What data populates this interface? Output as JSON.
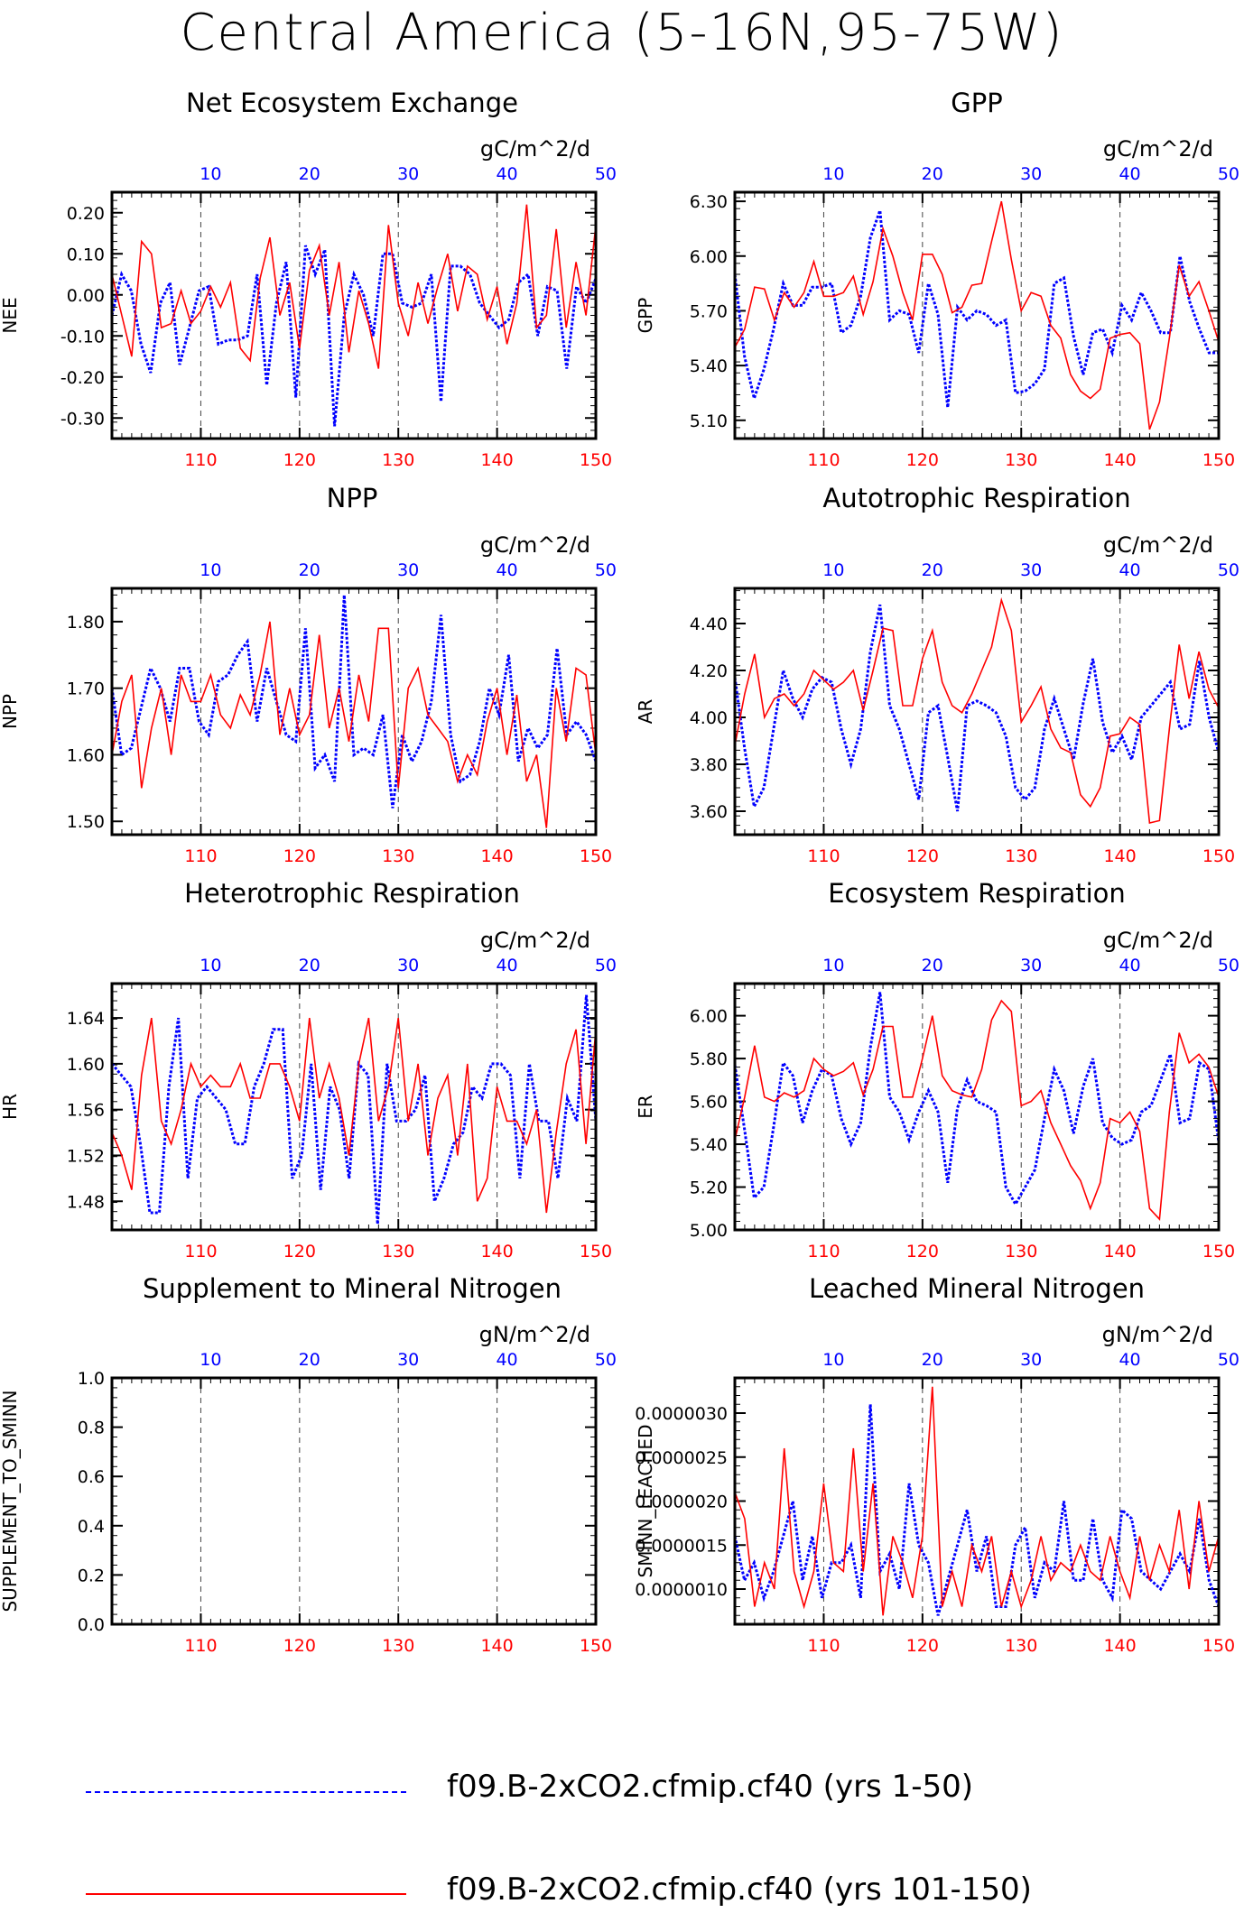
{
  "title": "Central America (5-16N,95-75W)",
  "legend": [
    {
      "label": "f09.B-2xCO2.cfmip.cf40 (yrs 1-50)",
      "color": "#0000ff",
      "style": "dashed"
    },
    {
      "label": "f09.B-2xCO2.cfmip.cf40 (yrs 101-150)",
      "color": "#ff0000",
      "style": "solid"
    }
  ],
  "colors": {
    "top_axis": "#0000ff",
    "bottom_axis": "#ff0000",
    "series_a": "#0000ff",
    "series_b": "#ff0000"
  },
  "chart_data": [
    {
      "type": "line",
      "title": "Net Ecosystem Exchange",
      "units": "gC/m^2/d",
      "ylabel": "NEE",
      "x_bottom_ticks": [
        110,
        120,
        130,
        140,
        150
      ],
      "x_top_ticks": [
        10,
        20,
        30,
        40,
        50
      ],
      "ylim": [
        -0.35,
        0.25
      ],
      "yticks": [
        0.2,
        0.1,
        0,
        -0.1,
        -0.2,
        -0.3
      ],
      "ytick_labels": [
        "0.20",
        "0.10",
        "0.00",
        "-0.10",
        "-0.20",
        "-0.30"
      ],
      "series": [
        {
          "name": "f09.B-2xCO2.cfmip.cf40 (yrs 1-50)",
          "values": [
            -0.05,
            0.05,
            0.01,
            -0.12,
            -0.19,
            -0.02,
            0.03,
            -0.17,
            -0.08,
            0.01,
            0.02,
            -0.12,
            -0.11,
            -0.11,
            -0.1,
            0.05,
            -0.22,
            -0.02,
            0.08,
            -0.25,
            0.12,
            0.05,
            0.11,
            -0.32,
            -0.05,
            0.05,
            0.0,
            -0.1,
            0.1,
            0.1,
            -0.02,
            -0.03,
            -0.02,
            0.05,
            -0.26,
            0.07,
            0.07,
            0.05,
            -0.02,
            -0.05,
            -0.08,
            -0.06,
            0.03,
            0.05,
            -0.1,
            0.02,
            0.01,
            -0.18,
            0.02,
            -0.02,
            0.04
          ]
        },
        {
          "name": "f09.B-2xCO2.cfmip.cf40 (yrs 101-150)",
          "values": [
            0.05,
            -0.05,
            -0.15,
            0.13,
            0.1,
            -0.08,
            -0.07,
            0.01,
            -0.07,
            -0.04,
            0.02,
            -0.03,
            0.03,
            -0.13,
            -0.16,
            0.04,
            0.14,
            -0.05,
            0.03,
            -0.13,
            0.06,
            0.12,
            -0.05,
            0.08,
            -0.14,
            0.01,
            -0.07,
            -0.18,
            0.17,
            -0.02,
            -0.1,
            0.03,
            -0.07,
            0.02,
            0.1,
            -0.04,
            0.07,
            0.05,
            -0.06,
            0.02,
            -0.12,
            -0.02,
            0.22,
            -0.08,
            -0.05,
            0.16,
            -0.08,
            0.08,
            -0.05,
            0.17
          ]
        }
      ]
    },
    {
      "type": "line",
      "title": "GPP",
      "units": "gC/m^2/d",
      "ylabel": "GPP",
      "x_bottom_ticks": [
        110,
        120,
        130,
        140,
        150
      ],
      "x_top_ticks": [
        10,
        20,
        30,
        40,
        50
      ],
      "ylim": [
        5.0,
        6.35
      ],
      "yticks": [
        6.3,
        6.0,
        5.7,
        5.4,
        5.1
      ],
      "ytick_labels": [
        "6.30",
        "6.00",
        "5.70",
        "5.40",
        "5.10"
      ],
      "series": [
        {
          "name": "f09.B-2xCO2.cfmip.cf40 (yrs 1-50)",
          "values": [
            5.9,
            5.45,
            5.22,
            5.38,
            5.6,
            5.85,
            5.73,
            5.73,
            5.83,
            5.83,
            5.85,
            5.58,
            5.62,
            5.78,
            6.1,
            6.25,
            5.65,
            5.7,
            5.68,
            5.47,
            5.85,
            5.68,
            5.17,
            5.72,
            5.65,
            5.7,
            5.68,
            5.62,
            5.65,
            5.25,
            5.26,
            5.3,
            5.38,
            5.85,
            5.88,
            5.56,
            5.35,
            5.58,
            5.6,
            5.47,
            5.73,
            5.65,
            5.8,
            5.7,
            5.58,
            5.58,
            6.0,
            5.75,
            5.6,
            5.47,
            5.47
          ]
        },
        {
          "name": "f09.B-2xCO2.cfmip.cf40 (yrs 101-150)",
          "values": [
            5.5,
            5.6,
            5.83,
            5.82,
            5.65,
            5.8,
            5.72,
            5.8,
            5.97,
            5.78,
            5.78,
            5.8,
            5.89,
            5.68,
            5.86,
            6.15,
            6.0,
            5.8,
            5.65,
            6.01,
            6.01,
            5.9,
            5.69,
            5.72,
            5.84,
            5.85,
            6.08,
            6.3,
            5.98,
            5.7,
            5.8,
            5.78,
            5.62,
            5.55,
            5.35,
            5.26,
            5.22,
            5.27,
            5.55,
            5.57,
            5.58,
            5.52,
            5.05,
            5.2,
            5.55,
            5.95,
            5.78,
            5.86,
            5.7,
            5.53
          ]
        }
      ]
    },
    {
      "type": "line",
      "title": "NPP",
      "units": "gC/m^2/d",
      "ylabel": "NPP",
      "x_bottom_ticks": [
        110,
        120,
        130,
        140,
        150
      ],
      "x_top_ticks": [
        10,
        20,
        30,
        40,
        50
      ],
      "ylim": [
        1.48,
        1.85
      ],
      "yticks": [
        1.8,
        1.7,
        1.6,
        1.5
      ],
      "ytick_labels": [
        "1.80",
        "1.70",
        "1.60",
        "1.50"
      ],
      "series": [
        {
          "name": "f09.B-2xCO2.cfmip.cf40 (yrs 1-50)",
          "values": [
            1.7,
            1.6,
            1.61,
            1.67,
            1.73,
            1.7,
            1.65,
            1.73,
            1.73,
            1.65,
            1.63,
            1.71,
            1.72,
            1.75,
            1.77,
            1.65,
            1.73,
            1.68,
            1.63,
            1.62,
            1.79,
            1.58,
            1.6,
            1.56,
            1.84,
            1.6,
            1.61,
            1.6,
            1.66,
            1.52,
            1.63,
            1.59,
            1.62,
            1.68,
            1.81,
            1.63,
            1.56,
            1.57,
            1.62,
            1.7,
            1.66,
            1.75,
            1.59,
            1.64,
            1.61,
            1.63,
            1.76,
            1.63,
            1.65,
            1.63,
            1.59
          ]
        },
        {
          "name": "f09.B-2xCO2.cfmip.cf40 (yrs 101-150)",
          "values": [
            1.6,
            1.68,
            1.72,
            1.55,
            1.64,
            1.7,
            1.6,
            1.72,
            1.68,
            1.68,
            1.72,
            1.66,
            1.64,
            1.69,
            1.66,
            1.72,
            1.8,
            1.63,
            1.7,
            1.63,
            1.66,
            1.78,
            1.64,
            1.7,
            1.62,
            1.72,
            1.65,
            1.79,
            1.79,
            1.55,
            1.7,
            1.73,
            1.66,
            1.64,
            1.62,
            1.56,
            1.6,
            1.57,
            1.65,
            1.7,
            1.6,
            1.69,
            1.56,
            1.6,
            1.49,
            1.7,
            1.62,
            1.73,
            1.72,
            1.6
          ]
        }
      ]
    },
    {
      "type": "line",
      "title": "Autotrophic Respiration",
      "units": "gC/m^2/d",
      "ylabel": "AR",
      "x_bottom_ticks": [
        110,
        120,
        130,
        140,
        150
      ],
      "x_top_ticks": [
        10,
        20,
        30,
        40,
        50
      ],
      "ylim": [
        3.5,
        4.55
      ],
      "yticks": [
        4.4,
        4.2,
        4.0,
        3.8,
        3.6
      ],
      "ytick_labels": [
        "4.40",
        "4.20",
        "4.00",
        "3.80",
        "3.60"
      ],
      "series": [
        {
          "name": "f09.B-2xCO2.cfmip.cf40 (yrs 1-50)",
          "values": [
            4.17,
            3.87,
            3.62,
            3.7,
            3.95,
            4.2,
            4.08,
            4.0,
            4.12,
            4.17,
            4.15,
            3.95,
            3.8,
            3.95,
            4.28,
            4.48,
            4.05,
            3.95,
            3.8,
            3.65,
            4.02,
            4.05,
            3.83,
            3.6,
            4.05,
            4.07,
            4.05,
            4.02,
            3.92,
            3.7,
            3.65,
            3.7,
            3.95,
            4.08,
            3.95,
            3.82,
            4.06,
            4.25,
            3.98,
            3.85,
            3.92,
            3.82,
            4.0,
            4.05,
            4.1,
            4.15,
            3.95,
            3.97,
            4.24,
            4.0,
            3.85
          ]
        },
        {
          "name": "f09.B-2xCO2.cfmip.cf40 (yrs 101-150)",
          "values": [
            3.88,
            4.1,
            4.27,
            4.0,
            4.08,
            4.1,
            4.05,
            4.1,
            4.2,
            4.16,
            4.12,
            4.15,
            4.2,
            4.03,
            4.2,
            4.38,
            4.37,
            4.05,
            4.05,
            4.25,
            4.37,
            4.15,
            4.05,
            4.02,
            4.1,
            4.2,
            4.3,
            4.5,
            4.37,
            3.98,
            4.05,
            4.13,
            3.95,
            3.87,
            3.85,
            3.67,
            3.62,
            3.7,
            3.92,
            3.93,
            4.0,
            3.97,
            3.55,
            3.56,
            3.95,
            4.31,
            4.08,
            4.28,
            4.12,
            4.04
          ]
        }
      ]
    },
    {
      "type": "line",
      "title": "Heterotrophic Respiration",
      "units": "gC/m^2/d",
      "ylabel": "HR",
      "x_bottom_ticks": [
        110,
        120,
        130,
        140,
        150
      ],
      "x_top_ticks": [
        10,
        20,
        30,
        40,
        50
      ],
      "ylim": [
        1.455,
        1.67
      ],
      "yticks": [
        1.64,
        1.6,
        1.56,
        1.52,
        1.48
      ],
      "ytick_labels": [
        "1.64",
        "1.60",
        "1.56",
        "1.52",
        "1.48"
      ],
      "series": [
        {
          "name": "f09.B-2xCO2.cfmip.cf40 (yrs 1-50)",
          "values": [
            1.6,
            1.59,
            1.58,
            1.53,
            1.47,
            1.47,
            1.58,
            1.64,
            1.5,
            1.57,
            1.58,
            1.57,
            1.56,
            1.53,
            1.53,
            1.58,
            1.6,
            1.63,
            1.63,
            1.5,
            1.52,
            1.6,
            1.49,
            1.58,
            1.56,
            1.5,
            1.6,
            1.59,
            1.46,
            1.6,
            1.55,
            1.55,
            1.56,
            1.59,
            1.48,
            1.5,
            1.53,
            1.54,
            1.58,
            1.57,
            1.6,
            1.6,
            1.59,
            1.5,
            1.6,
            1.55,
            1.55,
            1.5,
            1.57,
            1.55,
            1.66,
            1.55
          ]
        },
        {
          "name": "f09.B-2xCO2.cfmip.cf40 (yrs 101-150)",
          "values": [
            1.54,
            1.52,
            1.49,
            1.59,
            1.64,
            1.55,
            1.53,
            1.56,
            1.6,
            1.58,
            1.59,
            1.58,
            1.58,
            1.6,
            1.57,
            1.57,
            1.6,
            1.6,
            1.58,
            1.55,
            1.64,
            1.57,
            1.6,
            1.57,
            1.52,
            1.6,
            1.64,
            1.55,
            1.58,
            1.64,
            1.55,
            1.6,
            1.52,
            1.57,
            1.59,
            1.52,
            1.6,
            1.48,
            1.5,
            1.58,
            1.55,
            1.55,
            1.53,
            1.56,
            1.47,
            1.54,
            1.6,
            1.63,
            1.53,
            1.63
          ]
        }
      ]
    },
    {
      "type": "line",
      "title": "Ecosystem Respiration",
      "units": "gC/m^2/d",
      "ylabel": "ER",
      "x_bottom_ticks": [
        110,
        120,
        130,
        140,
        150
      ],
      "x_top_ticks": [
        10,
        20,
        30,
        40,
        50
      ],
      "ylim": [
        5.0,
        6.15
      ],
      "yticks": [
        6.0,
        5.8,
        5.6,
        5.4,
        5.2,
        5.0
      ],
      "ytick_labels": [
        "6.00",
        "5.80",
        "5.60",
        "5.40",
        "5.20",
        "5.00"
      ],
      "series": [
        {
          "name": "f09.B-2xCO2.cfmip.cf40 (yrs 1-50)",
          "values": [
            5.77,
            5.47,
            5.15,
            5.2,
            5.48,
            5.78,
            5.72,
            5.5,
            5.65,
            5.75,
            5.72,
            5.52,
            5.4,
            5.5,
            5.85,
            6.11,
            5.62,
            5.55,
            5.42,
            5.55,
            5.65,
            5.55,
            5.22,
            5.57,
            5.7,
            5.6,
            5.58,
            5.55,
            5.2,
            5.12,
            5.2,
            5.28,
            5.52,
            5.75,
            5.65,
            5.45,
            5.67,
            5.8,
            5.5,
            5.43,
            5.4,
            5.42,
            5.55,
            5.58,
            5.7,
            5.82,
            5.5,
            5.52,
            5.78,
            5.75,
            5.41
          ]
        },
        {
          "name": "f09.B-2xCO2.cfmip.cf40 (yrs 101-150)",
          "values": [
            5.42,
            5.62,
            5.86,
            5.62,
            5.6,
            5.64,
            5.62,
            5.65,
            5.8,
            5.75,
            5.72,
            5.74,
            5.78,
            5.63,
            5.75,
            5.95,
            5.95,
            5.62,
            5.62,
            5.8,
            6.0,
            5.72,
            5.65,
            5.63,
            5.62,
            5.75,
            5.98,
            6.07,
            6.02,
            5.58,
            5.6,
            5.65,
            5.5,
            5.4,
            5.3,
            5.23,
            5.1,
            5.22,
            5.52,
            5.5,
            5.55,
            5.46,
            5.1,
            5.05,
            5.55,
            5.92,
            5.78,
            5.82,
            5.76,
            5.62
          ]
        }
      ]
    },
    {
      "type": "line",
      "title": "Supplement to Mineral Nitrogen",
      "units": "gN/m^2/d",
      "ylabel": "SUPPLEMENT_TO_SMINN",
      "x_bottom_ticks": [
        110,
        120,
        130,
        140,
        150
      ],
      "x_top_ticks": [
        10,
        20,
        30,
        40,
        50
      ],
      "ylim": [
        0.0,
        1.0
      ],
      "yticks": [
        1.0,
        0.8,
        0.6,
        0.4,
        0.2,
        0.0
      ],
      "ytick_labels": [
        "1.0",
        "0.8",
        "0.6",
        "0.4",
        "0.2",
        "0.0"
      ],
      "series": []
    },
    {
      "type": "line",
      "title": "Leached Mineral Nitrogen",
      "units": "gN/m^2/d",
      "ylabel": "SMINN_LEACHED",
      "x_bottom_ticks": [
        110,
        120,
        130,
        140,
        150
      ],
      "x_top_ticks": [
        10,
        20,
        30,
        40,
        50
      ],
      "ylim": [
        6e-07,
        3.4e-06
      ],
      "yticks": [
        3e-06,
        2.5e-06,
        2e-06,
        1.5e-06,
        1e-06
      ],
      "ytick_labels": [
        "0.0000030",
        "0.0000025",
        "0.0000020",
        "0.0000015",
        "0.0000010"
      ],
      "series": [
        {
          "name": "f09.B-2xCO2.cfmip.cf40 (yrs 1-50)",
          "values": [
            1.6e-06,
            1.1e-06,
            1.3e-06,
            9e-07,
            1.2e-06,
            1.6e-06,
            2e-06,
            1.1e-06,
            1.6e-06,
            9e-07,
            1.3e-06,
            1.3e-06,
            1.5e-06,
            9e-07,
            3.1e-06,
            1.2e-06,
            1.4e-06,
            1e-06,
            2.2e-06,
            1.5e-06,
            1.3e-06,
            7e-07,
            1.1e-06,
            1.5e-06,
            1.9e-06,
            1.2e-06,
            1.6e-06,
            8e-07,
            8e-07,
            1.5e-06,
            1.7e-06,
            9e-07,
            1.3e-06,
            1.2e-06,
            2e-06,
            1.1e-06,
            1.1e-06,
            1.8e-06,
            1.1e-06,
            9e-07,
            1.9e-06,
            1.8e-06,
            1.2e-06,
            1.1e-06,
            1e-06,
            1.2e-06,
            1.4e-06,
            1.2e-06,
            1.8e-06,
            1.1e-06,
            8e-07
          ]
        },
        {
          "name": "f09.B-2xCO2.cfmip.cf40 (yrs 101-150)",
          "values": [
            2.1e-06,
            1.8e-06,
            8e-07,
            1.3e-06,
            1e-06,
            2.6e-06,
            1.2e-06,
            8e-07,
            1.2e-06,
            2.2e-06,
            1.3e-06,
            1.2e-06,
            2.6e-06,
            1.2e-06,
            2.2e-06,
            7e-07,
            1.6e-06,
            1.3e-06,
            9e-07,
            1.6e-06,
            3.3e-06,
            8e-07,
            1.2e-06,
            8e-07,
            1.5e-06,
            1.2e-06,
            1.6e-06,
            8e-07,
            1.2e-06,
            8e-07,
            1.1e-06,
            1.6e-06,
            1.1e-06,
            1.3e-06,
            1.2e-06,
            1.5e-06,
            1.2e-06,
            1.1e-06,
            1.6e-06,
            1.2e-06,
            9e-07,
            1.6e-06,
            1.1e-06,
            1.5e-06,
            1.2e-06,
            1.9e-06,
            1e-06,
            2e-06,
            1.2e-06,
            1.6e-06
          ]
        }
      ]
    }
  ]
}
